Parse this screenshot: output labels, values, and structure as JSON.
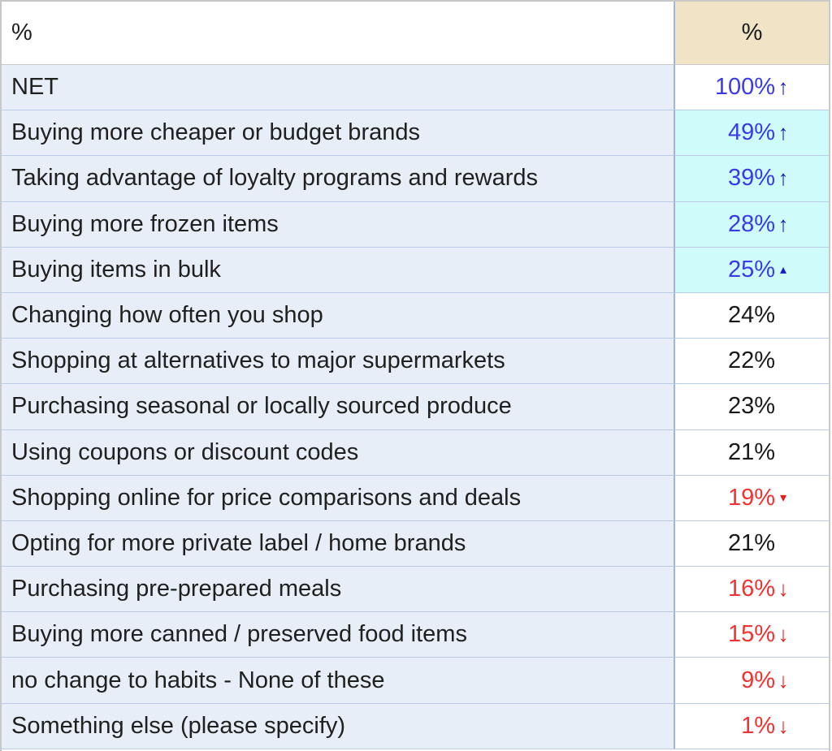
{
  "header": {
    "label": "%",
    "value": "%"
  },
  "rows": [
    {
      "label": "NET",
      "value": "100%",
      "dir": "up",
      "arrow": "↑",
      "highlight": false
    },
    {
      "label": "Buying more cheaper or budget brands",
      "value": "49%",
      "dir": "up",
      "arrow": "↑",
      "highlight": true
    },
    {
      "label": "Taking advantage of loyalty programs and rewards",
      "value": "39%",
      "dir": "up",
      "arrow": "↑",
      "highlight": true
    },
    {
      "label": "Buying more frozen items",
      "value": "28%",
      "dir": "up",
      "arrow": "↑",
      "highlight": true
    },
    {
      "label": "Buying items in bulk",
      "value": "25%",
      "dir": "up",
      "arrow": "▴",
      "highlight": true
    },
    {
      "label": "Changing how often you shop",
      "value": "24%",
      "dir": "none",
      "arrow": "",
      "highlight": false
    },
    {
      "label": "Shopping at alternatives to major supermarkets",
      "value": "22%",
      "dir": "none",
      "arrow": "",
      "highlight": false
    },
    {
      "label": "Purchasing seasonal or locally sourced produce",
      "value": "23%",
      "dir": "none",
      "arrow": "",
      "highlight": false
    },
    {
      "label": "Using coupons or discount codes",
      "value": "21%",
      "dir": "none",
      "arrow": "",
      "highlight": false
    },
    {
      "label": "Shopping online for price comparisons and deals",
      "value": "19%",
      "dir": "down",
      "arrow": "▾",
      "highlight": false
    },
    {
      "label": "Opting for more private label / home brands",
      "value": "21%",
      "dir": "none",
      "arrow": "",
      "highlight": false
    },
    {
      "label": "Purchasing pre-prepared meals",
      "value": "16%",
      "dir": "down",
      "arrow": "↓",
      "highlight": false
    },
    {
      "label": "Buying more canned / preserved food items",
      "value": "15%",
      "dir": "down",
      "arrow": "↓",
      "highlight": false
    },
    {
      "label": "no change to habits - None of these",
      "value": "9%",
      "dir": "down",
      "arrow": "↓",
      "highlight": false
    },
    {
      "label": "Something else (please specify)",
      "value": "1%",
      "dir": "down",
      "arrow": "↓",
      "highlight": false
    }
  ]
}
